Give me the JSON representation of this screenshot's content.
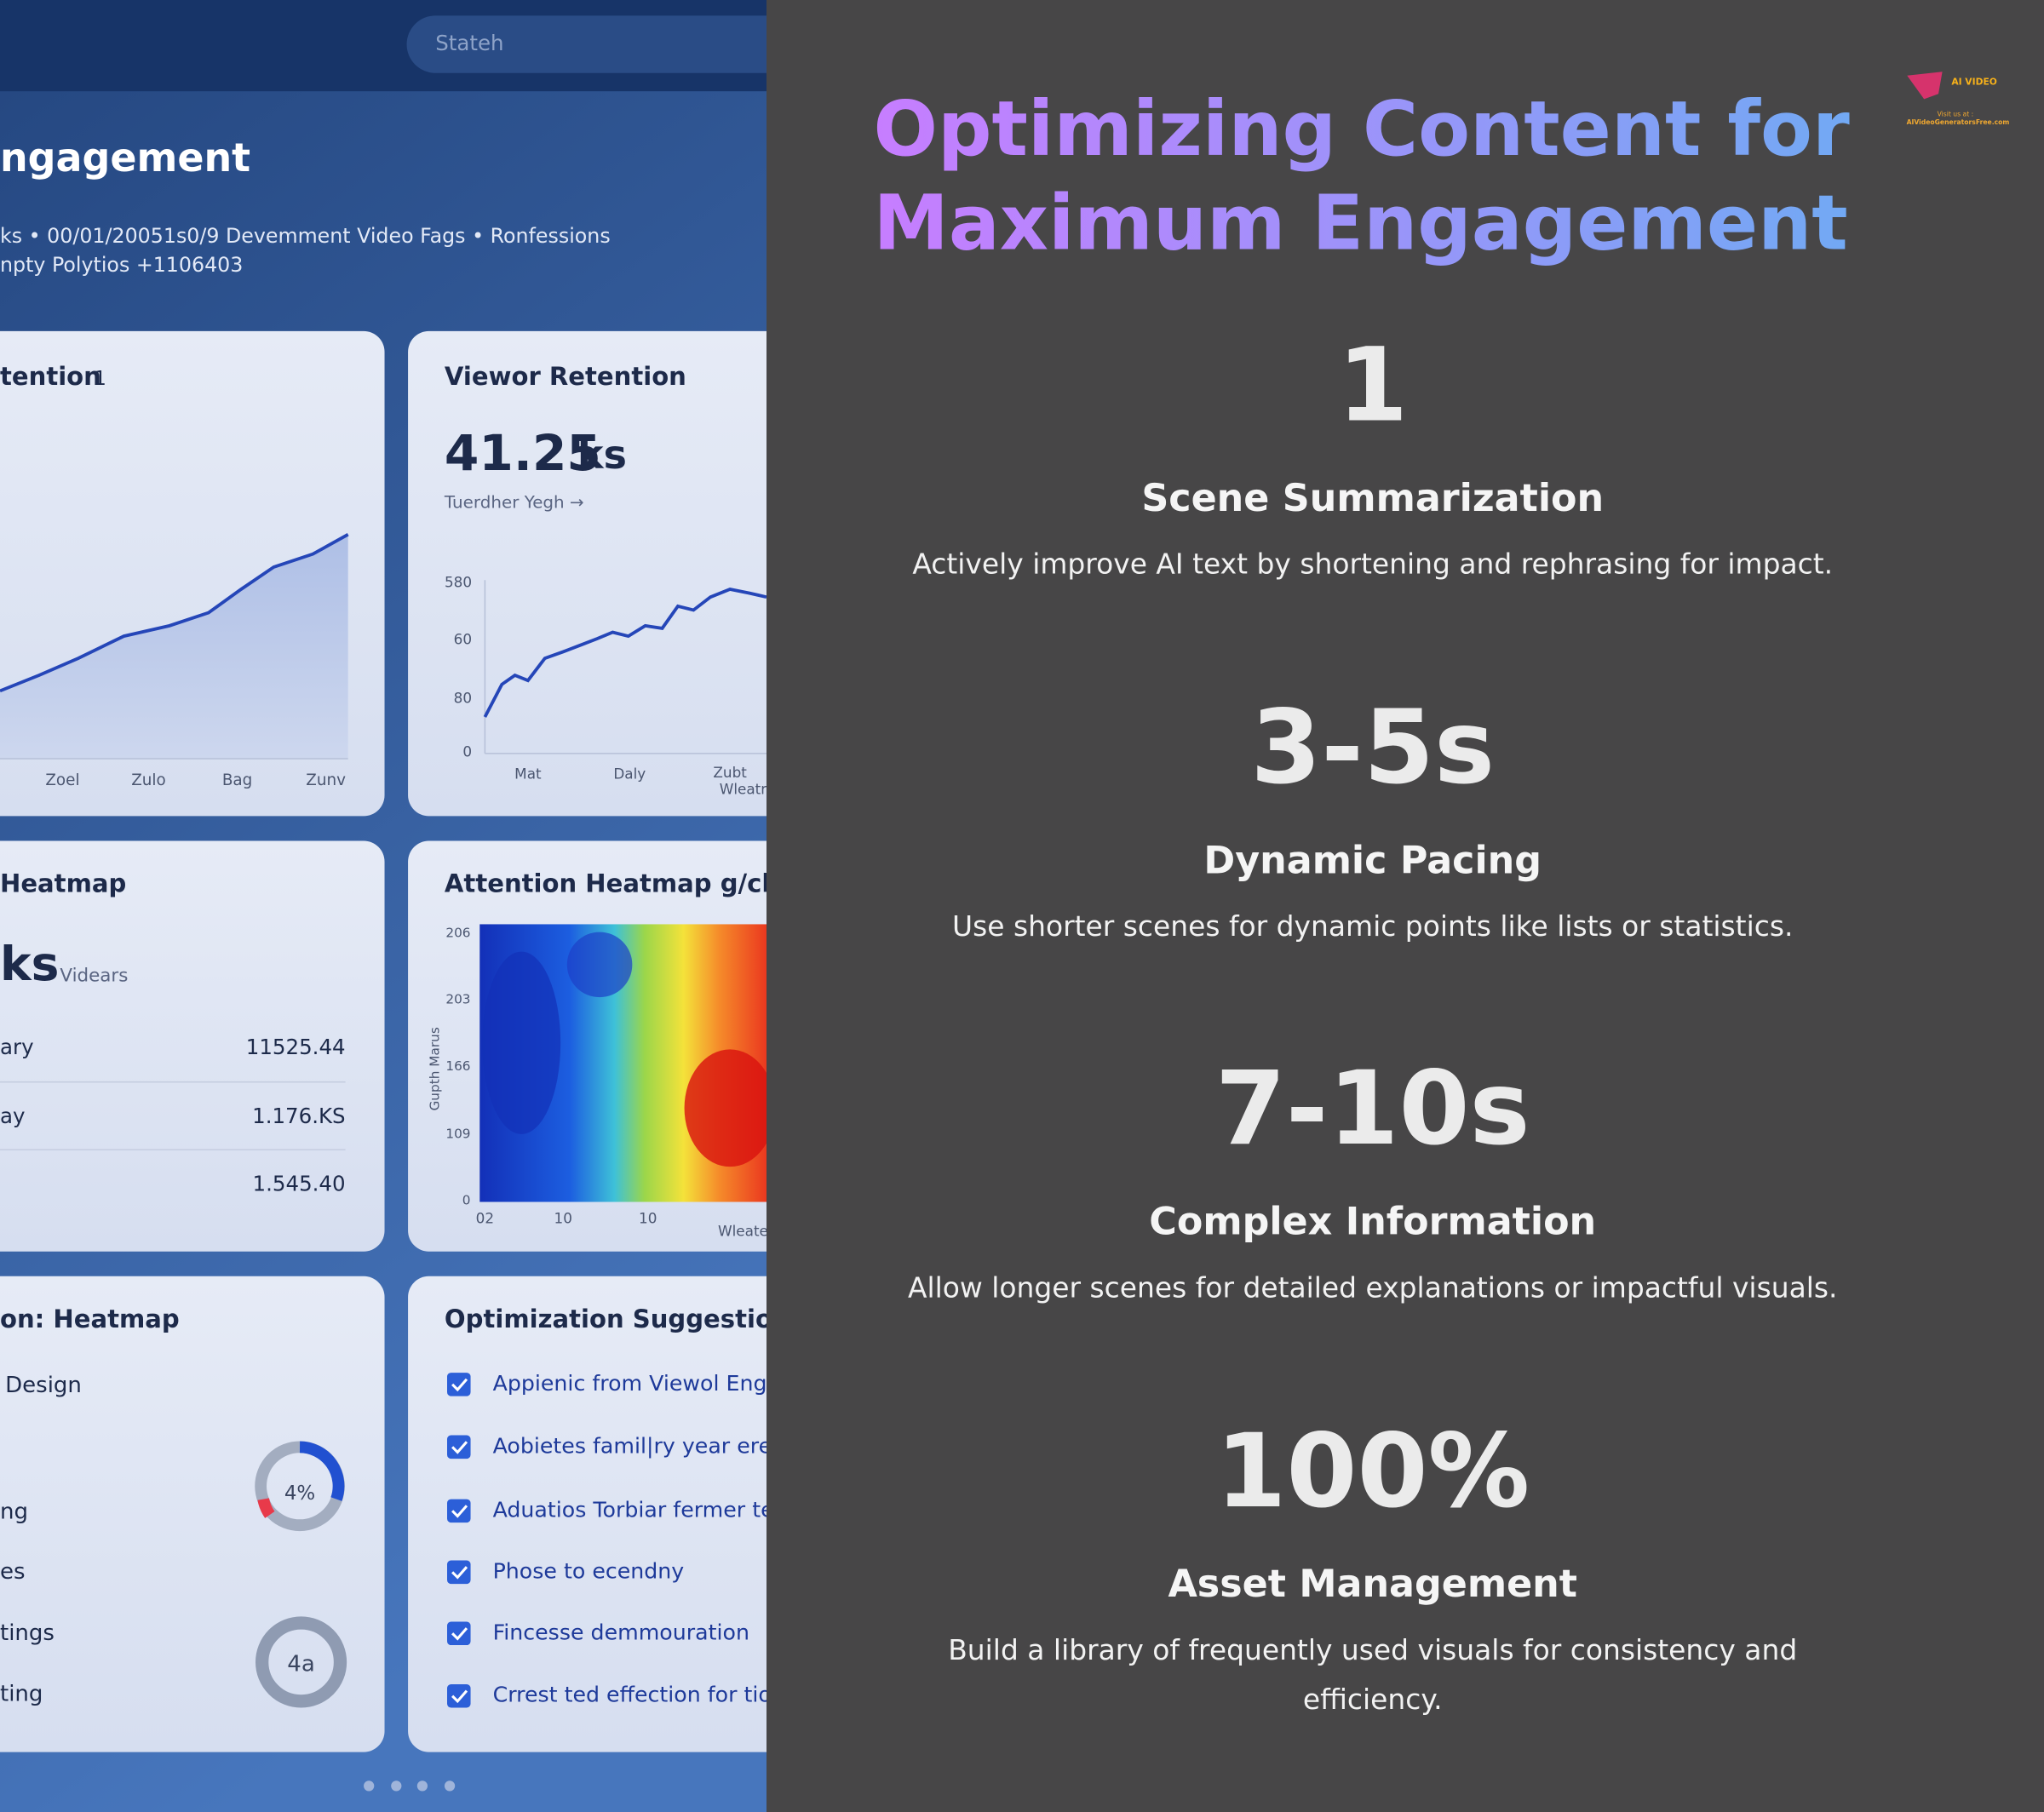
{
  "dashboard": {
    "search": "Stateh",
    "heading": "ngagement",
    "meta": [
      "ks  •  00/01/20051s0/9 Devemment   Video Fags  •  Ronfessions",
      "npty    Polytios  +1106403"
    ],
    "cards": {
      "retention": {
        "title": "tention",
        "badge": "1",
        "x_labels": [
          "Zoel",
          "Zulo",
          "Bag",
          "Zunv"
        ]
      },
      "viewer": {
        "title": "Viewor Retention",
        "value": "41.25",
        "unit": "ks",
        "caption": "Tuerdher Yegh →",
        "y_labels": [
          "580",
          "60",
          "80",
          "0"
        ],
        "x_labels": [
          "Mat",
          "Daly",
          "Zubt",
          "Wleatr"
        ]
      },
      "heatmap_stats": {
        "title": "Heatmap",
        "value": "ks",
        "unit": "Videars",
        "rows": [
          {
            "label": "ary",
            "value": "11525.44"
          },
          {
            "label": "ay",
            "value": "1.176.KS"
          },
          {
            "value": "1.545.40"
          }
        ]
      },
      "attention": {
        "title": "Attention Heatmap g/cks",
        "y_axis": "Gupth Marus",
        "y_labels": [
          "206",
          "203",
          "166",
          "109",
          "0"
        ],
        "x_labels": [
          "02",
          "10",
          "10",
          "Wleate"
        ]
      },
      "design": {
        "title": "on: Heatmap",
        "items": [
          "Design",
          "ng",
          "es",
          "tings",
          "ting"
        ],
        "gauges": [
          "4%",
          "4a"
        ]
      },
      "suggestions": {
        "title": "Optimization Suggestions",
        "items": [
          "Appienic from Viewol Engagement",
          "Aobietes famil|ry year erea",
          "Aduatios Torbiar fermer te",
          "Phose to ecendny",
          "Fincesse demmouration",
          "Crrest ted effection for tion"
        ]
      }
    }
  },
  "header": {
    "title": [
      "Optimizing Content for",
      "Maximum Engagement"
    ],
    "logo": {
      "brand": "AI VIDEO",
      "visit": "Visit us at :",
      "url": "AIVideoGeneratorsFree.com"
    }
  },
  "items": [
    {
      "stat": "1",
      "label": "Scene Summarization",
      "description": "Actively improve AI text by shortening and rephrasing for impact."
    },
    {
      "stat": "3-5s",
      "label": "Dynamic Pacing",
      "description": "Use shorter scenes for dynamic points like lists or statistics."
    },
    {
      "stat": "7-10s",
      "label": "Complex Information",
      "description": "Allow longer scenes for detailed explanations or impactful visuals."
    },
    {
      "stat": "100%",
      "label": "Asset Management",
      "description": "Build a library of frequently used visuals for consistency and efficiency."
    }
  ]
}
